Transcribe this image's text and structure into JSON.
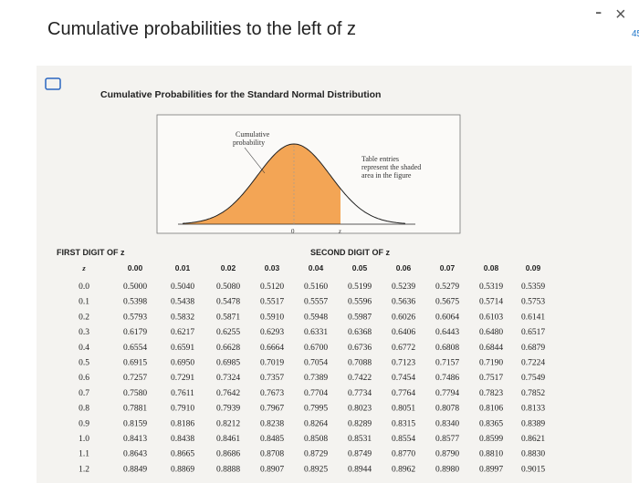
{
  "window": {
    "title": "Cumulative probabilities to the left of z",
    "minimize": "-",
    "close": "×",
    "side_label": "45"
  },
  "figure": {
    "heading": "Cumulative Probabilities for the Standard Normal Distribution",
    "curve_label_line1": "Cumulative",
    "curve_label_line2": "probability",
    "note_line1": "Table entries",
    "note_line2": "represent the shaded",
    "note_line3": "area in the figure",
    "axis_zero": "0",
    "axis_z": "z"
  },
  "table": {
    "first_digit_label": "FIRST DIGIT OF z",
    "second_digit_label": "SECOND DIGIT OF z",
    "header": [
      "z",
      "0.00",
      "0.01",
      "0.02",
      "0.03",
      "0.04",
      "0.05",
      "0.06",
      "0.07",
      "0.08",
      "0.09"
    ],
    "rows": [
      [
        "0.0",
        "0.5000",
        "0.5040",
        "0.5080",
        "0.5120",
        "0.5160",
        "0.5199",
        "0.5239",
        "0.5279",
        "0.5319",
        "0.5359"
      ],
      [
        "0.1",
        "0.5398",
        "0.5438",
        "0.5478",
        "0.5517",
        "0.5557",
        "0.5596",
        "0.5636",
        "0.5675",
        "0.5714",
        "0.5753"
      ],
      [
        "0.2",
        "0.5793",
        "0.5832",
        "0.5871",
        "0.5910",
        "0.5948",
        "0.5987",
        "0.6026",
        "0.6064",
        "0.6103",
        "0.6141"
      ],
      [
        "0.3",
        "0.6179",
        "0.6217",
        "0.6255",
        "0.6293",
        "0.6331",
        "0.6368",
        "0.6406",
        "0.6443",
        "0.6480",
        "0.6517"
      ],
      [
        "0.4",
        "0.6554",
        "0.6591",
        "0.6628",
        "0.6664",
        "0.6700",
        "0.6736",
        "0.6772",
        "0.6808",
        "0.6844",
        "0.6879"
      ],
      [
        "0.5",
        "0.6915",
        "0.6950",
        "0.6985",
        "0.7019",
        "0.7054",
        "0.7088",
        "0.7123",
        "0.7157",
        "0.7190",
        "0.7224"
      ],
      [
        "0.6",
        "0.7257",
        "0.7291",
        "0.7324",
        "0.7357",
        "0.7389",
        "0.7422",
        "0.7454",
        "0.7486",
        "0.7517",
        "0.7549"
      ],
      [
        "0.7",
        "0.7580",
        "0.7611",
        "0.7642",
        "0.7673",
        "0.7704",
        "0.7734",
        "0.7764",
        "0.7794",
        "0.7823",
        "0.7852"
      ],
      [
        "0.8",
        "0.7881",
        "0.7910",
        "0.7939",
        "0.7967",
        "0.7995",
        "0.8023",
        "0.8051",
        "0.8078",
        "0.8106",
        "0.8133"
      ],
      [
        "0.9",
        "0.8159",
        "0.8186",
        "0.8212",
        "0.8238",
        "0.8264",
        "0.8289",
        "0.8315",
        "0.8340",
        "0.8365",
        "0.8389"
      ],
      [
        "1.0",
        "0.8413",
        "0.8438",
        "0.8461",
        "0.8485",
        "0.8508",
        "0.8531",
        "0.8554",
        "0.8577",
        "0.8599",
        "0.8621"
      ],
      [
        "1.1",
        "0.8643",
        "0.8665",
        "0.8686",
        "0.8708",
        "0.8729",
        "0.8749",
        "0.8770",
        "0.8790",
        "0.8810",
        "0.8830"
      ],
      [
        "1.2",
        "0.8849",
        "0.8869",
        "0.8888",
        "0.8907",
        "0.8925",
        "0.8944",
        "0.8962",
        "0.8980",
        "0.8997",
        "0.9015"
      ]
    ]
  }
}
